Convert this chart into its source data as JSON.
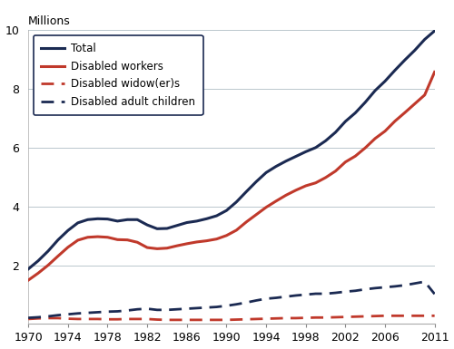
{
  "years": [
    1970,
    1971,
    1972,
    1973,
    1974,
    1975,
    1976,
    1977,
    1978,
    1979,
    1980,
    1981,
    1982,
    1983,
    1984,
    1985,
    1986,
    1987,
    1988,
    1989,
    1990,
    1991,
    1992,
    1993,
    1994,
    1995,
    1996,
    1997,
    1998,
    1999,
    2000,
    2001,
    2002,
    2003,
    2004,
    2005,
    2006,
    2007,
    2008,
    2009,
    2010,
    2011
  ],
  "total": [
    1.87,
    2.15,
    2.48,
    2.86,
    3.18,
    3.44,
    3.55,
    3.58,
    3.57,
    3.5,
    3.55,
    3.55,
    3.37,
    3.24,
    3.25,
    3.35,
    3.45,
    3.5,
    3.58,
    3.68,
    3.86,
    4.15,
    4.5,
    4.84,
    5.15,
    5.36,
    5.54,
    5.7,
    5.86,
    6.0,
    6.23,
    6.52,
    6.89,
    7.18,
    7.54,
    7.94,
    8.26,
    8.63,
    8.98,
    9.31,
    9.68,
    9.97
  ],
  "disabled_workers": [
    1.49,
    1.73,
    2.0,
    2.31,
    2.61,
    2.85,
    2.95,
    2.97,
    2.95,
    2.87,
    2.86,
    2.78,
    2.6,
    2.56,
    2.58,
    2.66,
    2.73,
    2.79,
    2.83,
    2.89,
    3.01,
    3.19,
    3.47,
    3.72,
    3.97,
    4.18,
    4.38,
    4.55,
    4.7,
    4.8,
    4.98,
    5.2,
    5.51,
    5.71,
    5.99,
    6.31,
    6.56,
    6.9,
    7.19,
    7.49,
    7.79,
    8.57
  ],
  "disabled_widowers": [
    0.17,
    0.19,
    0.2,
    0.2,
    0.18,
    0.17,
    0.17,
    0.17,
    0.16,
    0.16,
    0.17,
    0.17,
    0.17,
    0.15,
    0.14,
    0.14,
    0.14,
    0.14,
    0.14,
    0.14,
    0.14,
    0.15,
    0.16,
    0.17,
    0.18,
    0.19,
    0.2,
    0.2,
    0.21,
    0.22,
    0.22,
    0.23,
    0.24,
    0.25,
    0.26,
    0.27,
    0.28,
    0.28,
    0.28,
    0.28,
    0.28,
    0.28
  ],
  "disabled_adult_children": [
    0.21,
    0.23,
    0.26,
    0.3,
    0.33,
    0.36,
    0.38,
    0.4,
    0.42,
    0.43,
    0.46,
    0.5,
    0.52,
    0.48,
    0.48,
    0.5,
    0.52,
    0.54,
    0.56,
    0.58,
    0.62,
    0.67,
    0.73,
    0.8,
    0.86,
    0.89,
    0.93,
    0.97,
    1.0,
    1.03,
    1.03,
    1.06,
    1.1,
    1.13,
    1.18,
    1.22,
    1.25,
    1.28,
    1.32,
    1.38,
    1.44,
    1.02
  ],
  "color_navy": "#1b2a52",
  "color_red": "#c0392b",
  "ylabel": "Millions",
  "ylim": [
    0,
    10
  ],
  "yticks": [
    0,
    2,
    4,
    6,
    8,
    10
  ],
  "xticks": [
    1970,
    1974,
    1978,
    1982,
    1986,
    1990,
    1994,
    1998,
    2002,
    2006,
    2011
  ],
  "legend_labels": [
    "Total",
    "Disabled workers",
    "Disabled widow(er)s",
    "Disabled adult children"
  ]
}
